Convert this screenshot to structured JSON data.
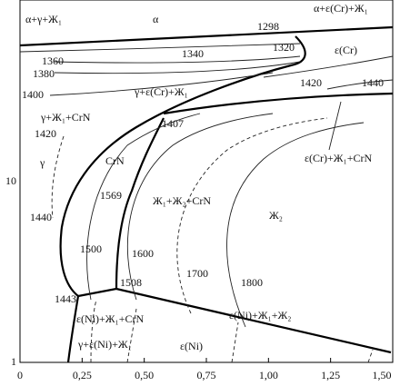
{
  "axes": {
    "x_ticks": [
      "0",
      "0,25",
      "0,50",
      "0,75",
      "1,00",
      "1,25",
      "1,50"
    ],
    "y_ticks": [
      "10",
      "1"
    ]
  },
  "regions": [
    {
      "label": "α+γ+Ж₁"
    },
    {
      "label": "α"
    },
    {
      "label": "1298"
    },
    {
      "label": "α+ε(Cr)+Ж₁"
    },
    {
      "label": "1340"
    },
    {
      "label": "1320"
    },
    {
      "label": "ε(Cr)"
    },
    {
      "label": "1360"
    },
    {
      "label": "1380"
    },
    {
      "label": "1400"
    },
    {
      "label": "γ+ε(Cr)+Ж₁"
    },
    {
      "label": "1420"
    },
    {
      "label": "1440"
    },
    {
      "label": "γ+Ж₁+CrN"
    },
    {
      "label": "1407"
    },
    {
      "label": "1420"
    },
    {
      "label": "γ"
    },
    {
      "label": "CrN"
    },
    {
      "label": "ε(Cr)+Ж₁+CrN"
    },
    {
      "label": "1569"
    },
    {
      "label": "Ж₁+Ж₂+CrN"
    },
    {
      "label": "Ж₂"
    },
    {
      "label": "1440"
    },
    {
      "label": "1500"
    },
    {
      "label": "1600"
    },
    {
      "label": "1700"
    },
    {
      "label": "1800"
    },
    {
      "label": "1508"
    },
    {
      "label": "1443"
    },
    {
      "label": "ε(Ni)+Ж₁+CrN"
    },
    {
      "label": "ε(Ni)+Ж₁+Ж₂"
    },
    {
      "label": "γ+ε(Ni)+Ж₁"
    },
    {
      "label": "ε(Ni)"
    }
  ]
}
